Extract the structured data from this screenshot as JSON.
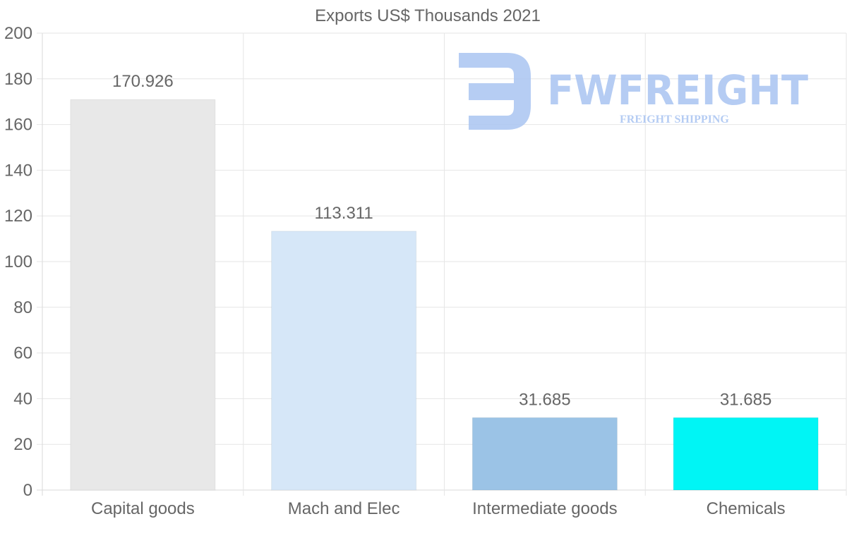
{
  "chart_data": {
    "type": "bar",
    "title": "Exports US$ Thousands 2021",
    "categories": [
      "Capital goods",
      "Mach and Elec",
      "Intermediate goods",
      "Chemicals"
    ],
    "values": [
      170.926,
      113.311,
      31.685,
      31.685
    ],
    "value_labels": [
      "170.926",
      "113.311",
      "31.685",
      "31.685"
    ],
    "colors": [
      "#e8e8e8",
      "#d6e7f8",
      "#9bc3e6",
      "#00f5f5"
    ],
    "ylim": [
      0,
      200
    ],
    "yticks": [
      0,
      20,
      40,
      60,
      80,
      100,
      120,
      140,
      160,
      180,
      200
    ],
    "xlabel": "",
    "ylabel": "",
    "grid": true
  },
  "watermark": {
    "brand": "FWFREIGHT",
    "tagline": "FREIGHT SHIPPING",
    "color": "#a9c4f1"
  }
}
